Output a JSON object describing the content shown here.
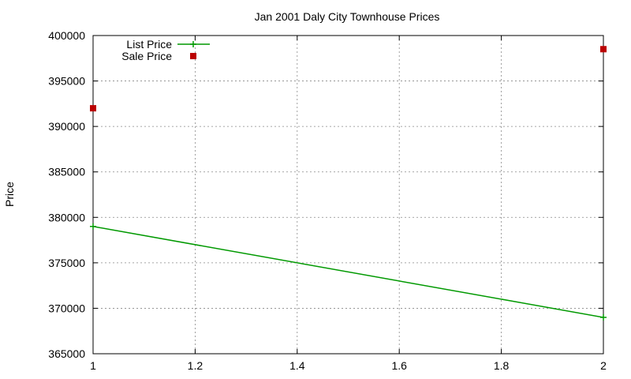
{
  "chart_data": {
    "type": "line",
    "title": "Jan 2001 Daly City Townhouse Prices",
    "xlabel": "",
    "ylabel": "Price",
    "xlim": [
      1,
      2
    ],
    "ylim": [
      365000,
      400000
    ],
    "x_ticks": [
      1,
      1.2,
      1.4,
      1.6,
      1.8,
      2
    ],
    "x_tick_labels": [
      "1",
      "1.2",
      "1.4",
      "1.6",
      "1.8",
      "2"
    ],
    "y_ticks": [
      365000,
      370000,
      375000,
      380000,
      385000,
      390000,
      395000,
      400000
    ],
    "y_tick_labels": [
      "365000",
      "370000",
      "375000",
      "380000",
      "385000",
      "390000",
      "395000",
      "400000"
    ],
    "grid": true,
    "legend_position": "top-left",
    "series": [
      {
        "name": "List Price",
        "style": "linespoints",
        "marker": "plus",
        "color": "#009900",
        "x": [
          1,
          2
        ],
        "y": [
          379000,
          369000
        ]
      },
      {
        "name": "Sale Price",
        "style": "points",
        "marker": "square",
        "color": "#bb0000",
        "x": [
          1,
          2
        ],
        "y": [
          392000,
          398500
        ]
      }
    ]
  }
}
